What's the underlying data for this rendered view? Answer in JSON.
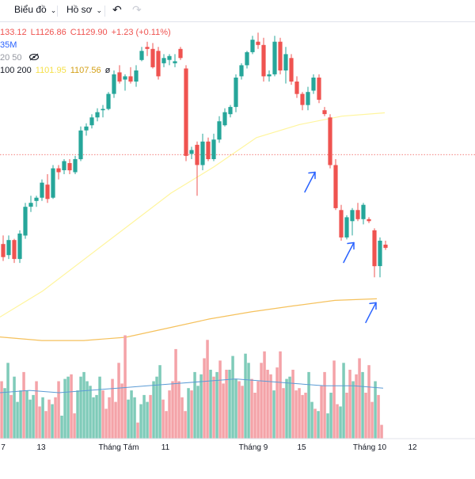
{
  "toolbar": {
    "chart_label": "Biểu đồ",
    "profile_label": "Hồ sơ",
    "undo_icon": "undo-icon",
    "redo_icon": "redo-icon"
  },
  "legend": {
    "ohlc": {
      "h": "133.12",
      "l": "L1126.86",
      "c": "C1129.90",
      "chg": "+1.23 (+0.11%)"
    },
    "volume": "35M",
    "ma_small": {
      "label": "20 50",
      "eye_icon": "eye-off-icon"
    },
    "ma_big": {
      "label": "100 200",
      "v1": "1101.95",
      "v2": "1107.56",
      "ref": "ø"
    }
  },
  "colors": {
    "up": "#26a69a",
    "down": "#ef5350",
    "vol_up": "#7fcbb9",
    "vol_down": "#f4a3a8",
    "ma100": "#fff59d",
    "ma200": "#f5c15c",
    "vol_ma": "#5b9bd5",
    "arrow": "#2962ff",
    "last_price": "#ef5350"
  },
  "chart_data": {
    "type": "candlestick",
    "x_ticks": [
      "7",
      "13",
      "Tháng Tám",
      "11",
      "Tháng 9",
      "15",
      "Tháng 10",
      "12"
    ],
    "candles": [
      [
        1116.2,
        1117.5,
        1113.6,
        1114.2
      ],
      [
        1114.5,
        1117.5,
        1113.9,
        1116.8
      ],
      [
        1116.8,
        1117.0,
        1113.3,
        1113.9
      ],
      [
        1113.9,
        1118.3,
        1113.3,
        1117.8
      ],
      [
        1117.5,
        1122.5,
        1117.0,
        1121.9
      ],
      [
        1121.9,
        1123.6,
        1121.1,
        1122.5
      ],
      [
        1122.8,
        1123.6,
        1121.9,
        1123.3
      ],
      [
        1123.3,
        1126.1,
        1122.8,
        1125.6
      ],
      [
        1125.3,
        1126.9,
        1122.5,
        1123.1
      ],
      [
        1123.3,
        1128.3,
        1123.1,
        1127.8
      ],
      [
        1127.8,
        1128.3,
        1126.1,
        1127.2
      ],
      [
        1127.5,
        1129.2,
        1126.9,
        1128.9
      ],
      [
        1128.6,
        1129.2,
        1126.9,
        1127.5
      ],
      [
        1127.2,
        1129.7,
        1126.9,
        1129.2
      ],
      [
        1129.2,
        1134.2,
        1128.9,
        1133.6
      ],
      [
        1133.6,
        1134.7,
        1132.8,
        1134.2
      ],
      [
        1134.4,
        1136.1,
        1133.9,
        1135.6
      ],
      [
        1135.6,
        1137.0,
        1135.0,
        1136.4
      ],
      [
        1136.7,
        1137.5,
        1135.6,
        1136.9
      ],
      [
        1136.9,
        1139.5,
        1136.7,
        1139.2
      ],
      [
        1139.2,
        1142.8,
        1138.6,
        1142.2
      ],
      [
        1142.5,
        1143.6,
        1140.8,
        1141.1
      ],
      [
        1141.4,
        1142.2,
        1139.7,
        1141.9
      ],
      [
        1141.9,
        1143.3,
        1140.8,
        1141.1
      ],
      [
        1141.1,
        1143.6,
        1140.3,
        1142.8
      ],
      [
        1144.4,
        1146.4,
        1144.2,
        1145.8
      ],
      [
        1146.4,
        1147.2,
        1145.0,
        1146.1
      ],
      [
        1146.1,
        1147.0,
        1143.1,
        1143.3
      ],
      [
        1145.8,
        1146.4,
        1141.4,
        1141.9
      ],
      [
        1143.9,
        1145.3,
        1143.3,
        1144.7
      ],
      [
        1144.4,
        1145.3,
        1143.6,
        1145.0
      ],
      [
        1143.9,
        1145.3,
        1143.3,
        1144.2
      ],
      [
        1146.1,
        1146.4,
        1144.4,
        1144.7
      ],
      [
        1143.1,
        1143.6,
        1128.9,
        1129.7
      ],
      [
        1130.0,
        1131.1,
        1129.2,
        1130.6
      ],
      [
        1131.4,
        1131.9,
        1123.6,
        1128.3
      ],
      [
        1128.3,
        1133.1,
        1127.5,
        1131.9
      ],
      [
        1131.9,
        1132.5,
        1128.9,
        1129.2
      ],
      [
        1129.2,
        1133.1,
        1128.9,
        1132.2
      ],
      [
        1132.2,
        1135.8,
        1131.7,
        1135.0
      ],
      [
        1134.4,
        1137.0,
        1134.2,
        1136.4
      ],
      [
        1136.1,
        1137.5,
        1135.6,
        1137.2
      ],
      [
        1137.2,
        1142.2,
        1136.4,
        1141.7
      ],
      [
        1141.9,
        1143.9,
        1141.4,
        1143.6
      ],
      [
        1143.6,
        1145.8,
        1143.1,
        1145.6
      ],
      [
        1145.6,
        1148.1,
        1145.3,
        1147.5
      ],
      [
        1147.2,
        1148.6,
        1146.1,
        1146.7
      ],
      [
        1146.7,
        1147.8,
        1141.1,
        1141.9
      ],
      [
        1141.9,
        1142.8,
        1141.1,
        1142.2
      ],
      [
        1142.2,
        1148.1,
        1141.9,
        1147.2
      ],
      [
        1147.2,
        1147.8,
        1142.2,
        1142.8
      ],
      [
        1142.8,
        1146.4,
        1140.8,
        1145.3
      ],
      [
        1144.7,
        1145.3,
        1140.6,
        1141.1
      ],
      [
        1141.1,
        1141.9,
        1138.6,
        1139.2
      ],
      [
        1139.2,
        1139.5,
        1136.7,
        1137.5
      ],
      [
        1137.5,
        1140.3,
        1136.7,
        1139.5
      ],
      [
        1139.7,
        1142.2,
        1139.2,
        1141.7
      ],
      [
        1141.7,
        1142.2,
        1137.8,
        1138.3
      ],
      [
        1136.7,
        1137.2,
        1135.8,
        1136.1
      ],
      [
        1135.6,
        1136.1,
        1127.8,
        1128.3
      ],
      [
        1128.3,
        1129.2,
        1121.4,
        1121.7
      ],
      [
        1121.4,
        1122.2,
        1116.7,
        1117.2
      ],
      [
        1117.2,
        1120.6,
        1116.9,
        1120.3
      ],
      [
        1119.7,
        1121.7,
        1117.5,
        1121.4
      ],
      [
        1121.4,
        1122.5,
        1119.7,
        1120.0
      ],
      [
        1120.0,
        1122.5,
        1119.2,
        1122.2
      ],
      [
        1120.0,
        1120.3,
        1119.4,
        1119.7
      ],
      [
        1118.3,
        1118.6,
        1111.1,
        1112.8
      ],
      [
        1112.8,
        1117.2,
        1111.1,
        1116.7
      ],
      [
        1116.1,
        1116.7,
        1115.3,
        1115.6
      ]
    ],
    "volume": [
      [
        25,
        0
      ],
      [
        22,
        1
      ],
      [
        33,
        1
      ],
      [
        19,
        0
      ],
      [
        27,
        1
      ],
      [
        16,
        1
      ],
      [
        21,
        1
      ],
      [
        29,
        0
      ],
      [
        21,
        1
      ],
      [
        17,
        1
      ],
      [
        19,
        1
      ],
      [
        25,
        0
      ],
      [
        14,
        0
      ],
      [
        18,
        1
      ],
      [
        12,
        0
      ],
      [
        17,
        0
      ],
      [
        15,
        1
      ],
      [
        18,
        0
      ],
      [
        25,
        0
      ],
      [
        10,
        1
      ],
      [
        26,
        1
      ],
      [
        27,
        1
      ],
      [
        28,
        0
      ],
      [
        11,
        0
      ],
      [
        21,
        1
      ],
      [
        27,
        1
      ],
      [
        29,
        1
      ],
      [
        25,
        1
      ],
      [
        23,
        1
      ],
      [
        18,
        1
      ],
      [
        19,
        1
      ],
      [
        27,
        1
      ],
      [
        21,
        0
      ],
      [
        13,
        0
      ],
      [
        18,
        0
      ],
      [
        26,
        0
      ],
      [
        16,
        0
      ],
      [
        33,
        0
      ],
      [
        24,
        0
      ],
      [
        45,
        0
      ],
      [
        17,
        1
      ],
      [
        21,
        1
      ],
      [
        18,
        1
      ],
      [
        7,
        0
      ],
      [
        15,
        1
      ],
      [
        19,
        1
      ],
      [
        16,
        1
      ],
      [
        19,
        0
      ],
      [
        25,
        1
      ],
      [
        27,
        1
      ],
      [
        32,
        1
      ],
      [
        17,
        0
      ],
      [
        12,
        0
      ],
      [
        21,
        0
      ],
      [
        25,
        0
      ],
      [
        39,
        0
      ],
      [
        25,
        0
      ],
      [
        18,
        0
      ],
      [
        12,
        0
      ],
      [
        22,
        1
      ],
      [
        21,
        0
      ],
      [
        29,
        1
      ],
      [
        23,
        1
      ],
      [
        28,
        1
      ],
      [
        35,
        0
      ],
      [
        43,
        0
      ],
      [
        30,
        1
      ],
      [
        27,
        0
      ],
      [
        29,
        1
      ],
      [
        34,
        0
      ],
      [
        24,
        0
      ],
      [
        30,
        0
      ],
      [
        30,
        1
      ],
      [
        36,
        1
      ],
      [
        26,
        1
      ],
      [
        25,
        0
      ],
      [
        23,
        0
      ],
      [
        37,
        1
      ],
      [
        33,
        1
      ],
      [
        26,
        0
      ],
      [
        20,
        0
      ],
      [
        25,
        0
      ],
      [
        33,
        0
      ],
      [
        38,
        0
      ],
      [
        30,
        0
      ],
      [
        28,
        0
      ],
      [
        21,
        1
      ],
      [
        31,
        0
      ],
      [
        38,
        0
      ],
      [
        22,
        0
      ],
      [
        26,
        1
      ],
      [
        27,
        1
      ],
      [
        30,
        0
      ],
      [
        21,
        0
      ],
      [
        22,
        0
      ],
      [
        19,
        0
      ],
      [
        20,
        0
      ],
      [
        29,
        1
      ],
      [
        16,
        1
      ],
      [
        13,
        0
      ],
      [
        12,
        1
      ],
      [
        23,
        0
      ],
      [
        29,
        0
      ],
      [
        11,
        1
      ],
      [
        20,
        1
      ],
      [
        34,
        0
      ],
      [
        15,
        0
      ],
      [
        14,
        1
      ],
      [
        33,
        1
      ],
      [
        20,
        0
      ],
      [
        30,
        0
      ],
      [
        25,
        1
      ],
      [
        28,
        0
      ],
      [
        35,
        0
      ],
      [
        29,
        1
      ],
      [
        20,
        0
      ],
      [
        32,
        0
      ],
      [
        16,
        0
      ],
      [
        25,
        1
      ],
      [
        19,
        0
      ],
      [
        6,
        0
      ]
    ],
    "ma100": [
      1105.0,
      1109.0,
      1114.0,
      1119.0,
      1124.0,
      1128.0,
      1132.5,
      1134.5,
      1135.8,
      1136.3
    ],
    "ma200": [
      1101.95,
      1101.4,
      1101.4,
      1101.9,
      1103.3,
      1104.7,
      1105.8,
      1106.7,
      1107.56,
      1107.8
    ],
    "vol_ma": [
      20,
      21,
      20,
      21,
      22,
      23,
      24,
      25,
      26,
      25,
      24,
      23,
      23,
      22
    ],
    "last_price": 1129.9,
    "annotation_arrows": [
      {
        "candle": 56,
        "price": 1127.2
      },
      {
        "candle": 63,
        "price": 1116.4
      },
      {
        "candle": 67,
        "price": 1107.2
      }
    ]
  }
}
